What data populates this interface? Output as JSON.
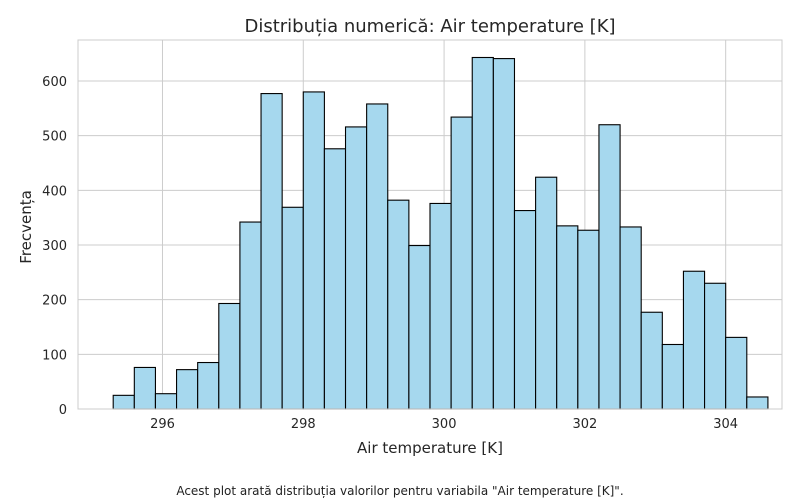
{
  "chart_data": {
    "type": "bar",
    "title": "Distribuția numerică: Air temperature [K]",
    "xlabel": "Air temperature [K]",
    "ylabel": "Frecvența",
    "xlim": [
      294.8,
      304.8
    ],
    "ylim": [
      0,
      675
    ],
    "xticks": [
      296,
      298,
      300,
      302,
      304
    ],
    "yticks": [
      0,
      100,
      200,
      300,
      400,
      500,
      600
    ],
    "grid": true,
    "bar_color": "#a6d8ee",
    "edge_color": "#000000",
    "bins": [
      {
        "x0": 295.3,
        "x1": 295.6,
        "count": 25
      },
      {
        "x0": 295.6,
        "x1": 295.9,
        "count": 76
      },
      {
        "x0": 295.9,
        "x1": 296.2,
        "count": 28
      },
      {
        "x0": 296.2,
        "x1": 296.5,
        "count": 72
      },
      {
        "x0": 296.5,
        "x1": 296.8,
        "count": 85
      },
      {
        "x0": 296.8,
        "x1": 297.1,
        "count": 193
      },
      {
        "x0": 297.1,
        "x1": 297.4,
        "count": 342
      },
      {
        "x0": 297.4,
        "x1": 297.7,
        "count": 577
      },
      {
        "x0": 297.7,
        "x1": 298.0,
        "count": 369
      },
      {
        "x0": 298.0,
        "x1": 298.3,
        "count": 580
      },
      {
        "x0": 298.3,
        "x1": 298.6,
        "count": 476
      },
      {
        "x0": 298.6,
        "x1": 298.9,
        "count": 516
      },
      {
        "x0": 298.9,
        "x1": 299.2,
        "count": 558
      },
      {
        "x0": 299.2,
        "x1": 299.5,
        "count": 382
      },
      {
        "x0": 299.5,
        "x1": 299.8,
        "count": 299
      },
      {
        "x0": 299.8,
        "x1": 300.1,
        "count": 376
      },
      {
        "x0": 300.1,
        "x1": 300.4,
        "count": 534
      },
      {
        "x0": 300.4,
        "x1": 300.7,
        "count": 643
      },
      {
        "x0": 300.7,
        "x1": 301.0,
        "count": 641
      },
      {
        "x0": 301.0,
        "x1": 301.3,
        "count": 363
      },
      {
        "x0": 301.3,
        "x1": 301.6,
        "count": 424
      },
      {
        "x0": 301.6,
        "x1": 301.9,
        "count": 335
      },
      {
        "x0": 301.9,
        "x1": 302.2,
        "count": 327
      },
      {
        "x0": 302.2,
        "x1": 302.5,
        "count": 520
      },
      {
        "x0": 302.5,
        "x1": 302.8,
        "count": 333
      },
      {
        "x0": 302.8,
        "x1": 303.1,
        "count": 177
      },
      {
        "x0": 303.1,
        "x1": 303.4,
        "count": 118
      },
      {
        "x0": 303.4,
        "x1": 303.7,
        "count": 252
      },
      {
        "x0": 303.7,
        "x1": 304.0,
        "count": 230
      },
      {
        "x0": 304.0,
        "x1": 304.3,
        "count": 131
      },
      {
        "x0": 304.3,
        "x1": 304.6,
        "count": 22
      }
    ]
  },
  "caption": "Acest plot arată distribuția valorilor pentru variabila \"Air temperature [K]\"."
}
